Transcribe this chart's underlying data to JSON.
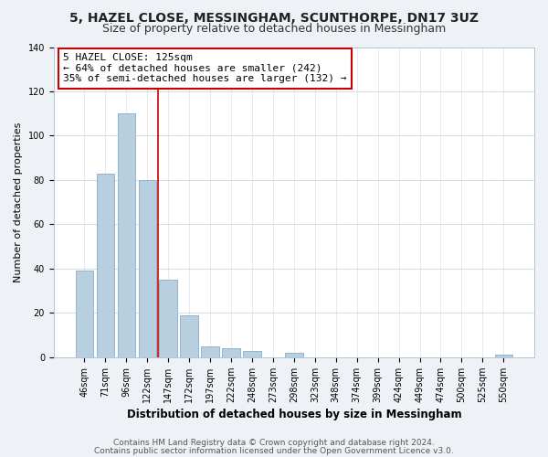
{
  "title": "5, HAZEL CLOSE, MESSINGHAM, SCUNTHORPE, DN17 3UZ",
  "subtitle": "Size of property relative to detached houses in Messingham",
  "xlabel": "Distribution of detached houses by size in Messingham",
  "ylabel": "Number of detached properties",
  "bar_labels": [
    "46sqm",
    "71sqm",
    "96sqm",
    "122sqm",
    "147sqm",
    "172sqm",
    "197sqm",
    "222sqm",
    "248sqm",
    "273sqm",
    "298sqm",
    "323sqm",
    "348sqm",
    "374sqm",
    "399sqm",
    "424sqm",
    "449sqm",
    "474sqm",
    "500sqm",
    "525sqm",
    "550sqm"
  ],
  "bar_values": [
    39,
    83,
    110,
    80,
    35,
    19,
    5,
    4,
    3,
    0,
    2,
    0,
    0,
    0,
    0,
    0,
    0,
    0,
    0,
    0,
    1
  ],
  "bar_color": "#b8cfe0",
  "bar_edge_color": "#8aacc8",
  "vline_x": 3.5,
  "vline_color": "#cc0000",
  "annotation_text": "5 HAZEL CLOSE: 125sqm\n← 64% of detached houses are smaller (242)\n35% of semi-detached houses are larger (132) →",
  "annotation_box_color": "#ffffff",
  "annotation_box_edge": "#cc0000",
  "ylim": [
    0,
    140
  ],
  "yticks": [
    0,
    20,
    40,
    60,
    80,
    100,
    120,
    140
  ],
  "footer_line1": "Contains HM Land Registry data © Crown copyright and database right 2024.",
  "footer_line2": "Contains public sector information licensed under the Open Government Licence v3.0.",
  "background_color": "#eef2f7",
  "plot_bg_color": "#ffffff",
  "title_fontsize": 10,
  "subtitle_fontsize": 9,
  "xlabel_fontsize": 8.5,
  "ylabel_fontsize": 8,
  "tick_fontsize": 7,
  "annotation_fontsize": 8,
  "footer_fontsize": 6.5,
  "grid_color": "#d0dce8"
}
